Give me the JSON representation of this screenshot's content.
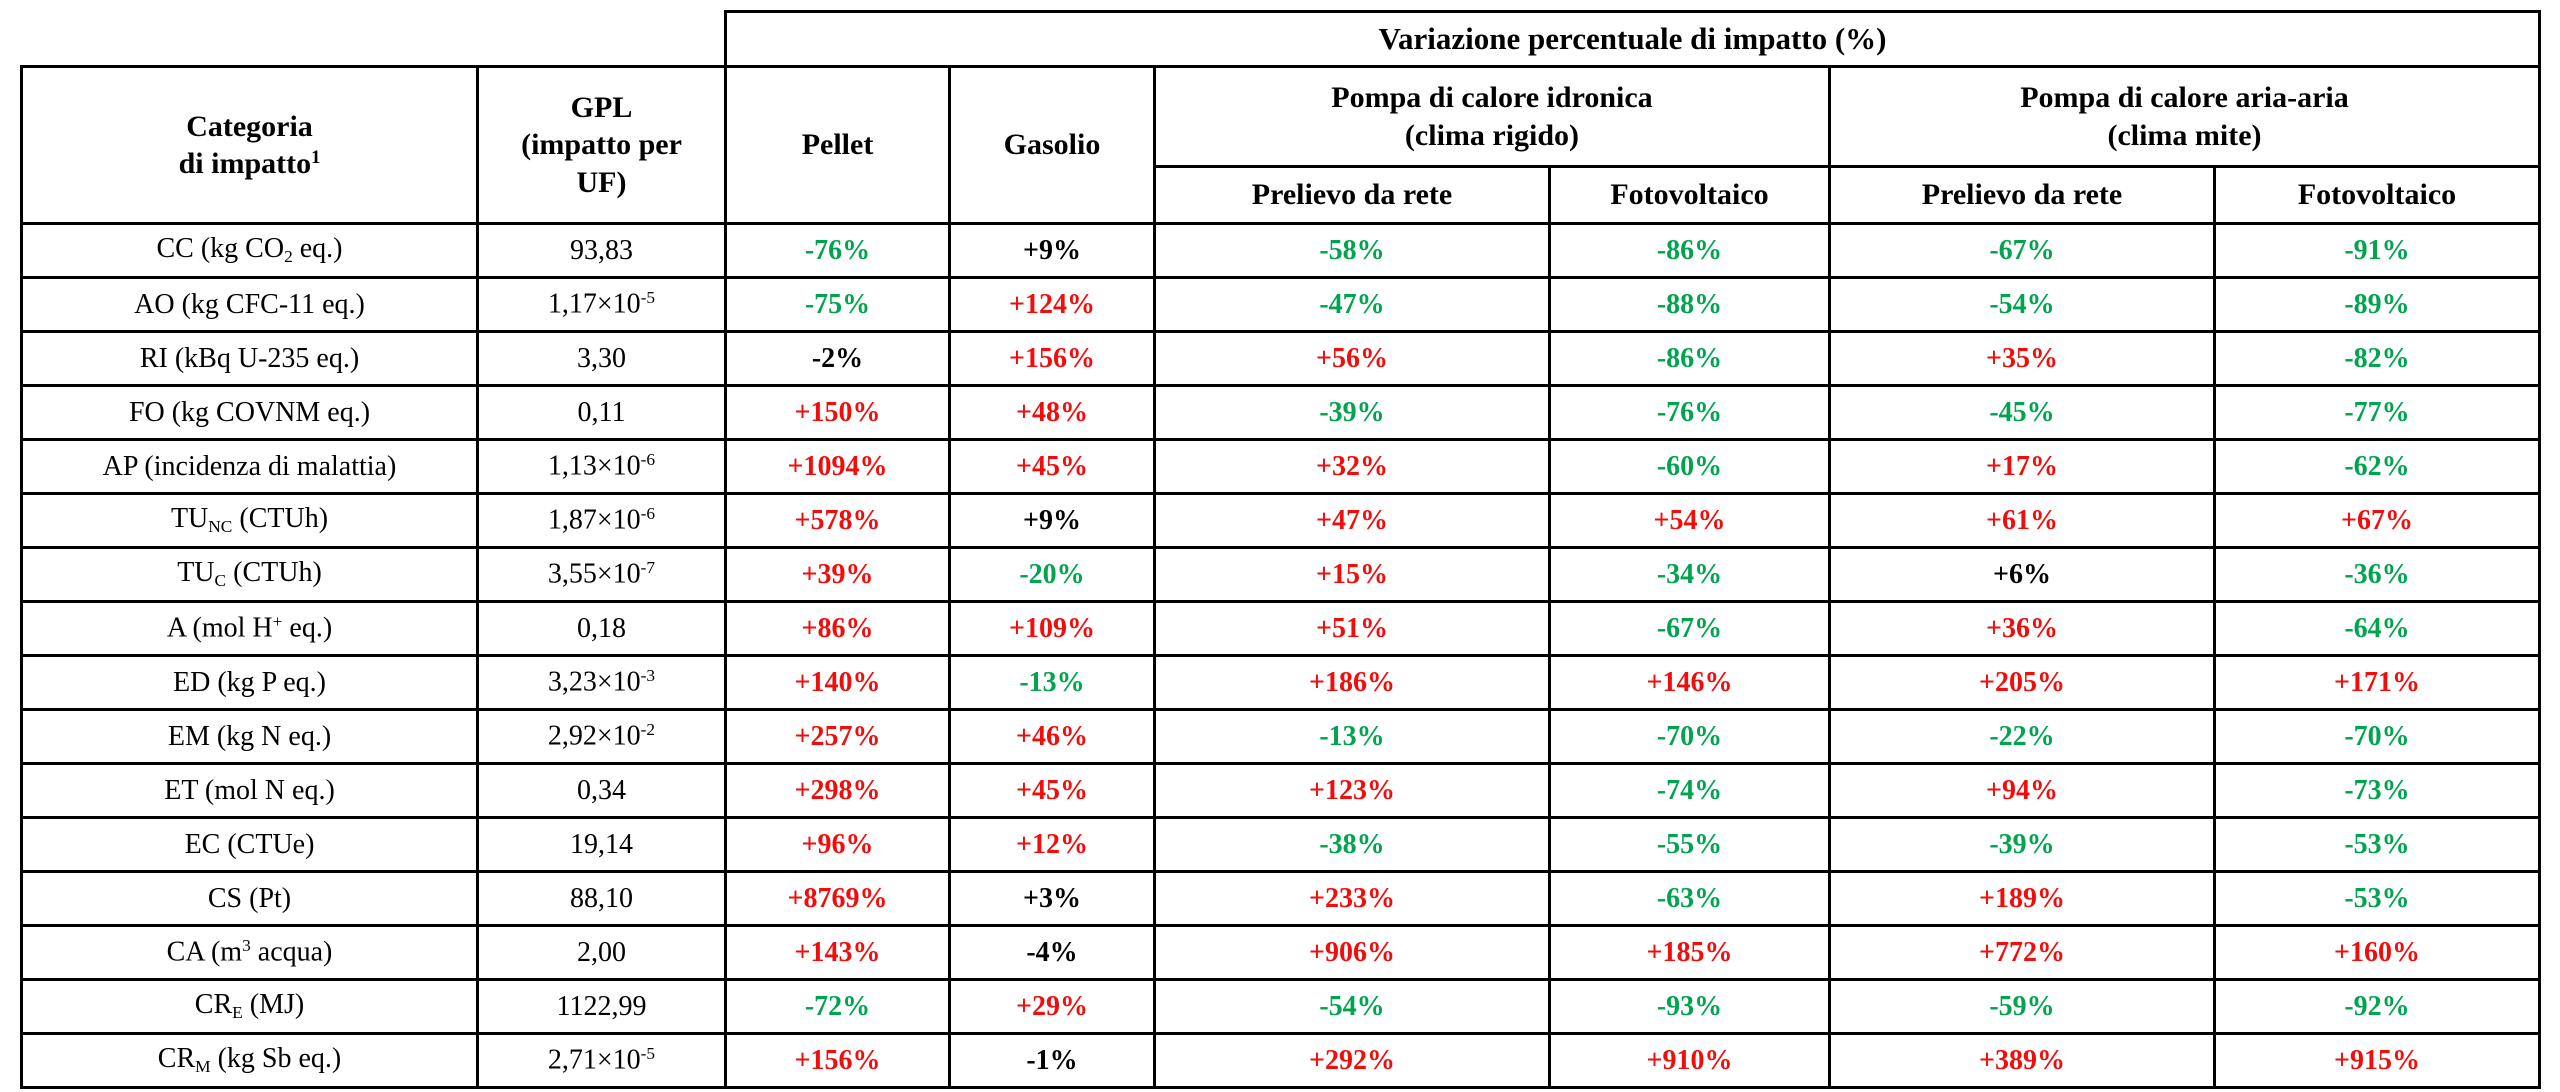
{
  "colors": {
    "r": "#f20d0d",
    "g": "#00a44f",
    "k": "#000000"
  },
  "header": {
    "variazione": "Variazione percentuale di impatto (%)",
    "categoria": [
      [
        "t",
        "Categoria\ndi impatto"
      ],
      [
        "sup",
        "1"
      ]
    ],
    "gpl": "GPL\n(impatto per\nUF)",
    "pellet": "Pellet",
    "gasolio": "Gasolio",
    "idronica": "Pompa di calore idronica\n(clima rigido)",
    "aria_aria": "Pompa di calore aria-aria\n(clima mite)",
    "prelievo": "Prelievo da rete",
    "fotovoltaico": "Fotovoltaico"
  },
  "rows": [
    {
      "category": [
        [
          "t",
          "CC (kg CO"
        ],
        [
          "sub",
          "2"
        ],
        [
          "t",
          " eq.)"
        ]
      ],
      "gpl": "93,83",
      "values": [
        {
          "t": "-76%",
          "c": "g"
        },
        {
          "t": "+9%",
          "c": "k"
        },
        {
          "t": "-58%",
          "c": "g"
        },
        {
          "t": "-86%",
          "c": "g"
        },
        {
          "t": "-67%",
          "c": "g"
        },
        {
          "t": "-91%",
          "c": "g"
        }
      ]
    },
    {
      "category": "AO (kg CFC-11 eq.)",
      "gpl": [
        [
          "t",
          "1,17×10"
        ],
        [
          "sup",
          "-5"
        ]
      ],
      "values": [
        {
          "t": "-75%",
          "c": "g"
        },
        {
          "t": "+124%",
          "c": "r"
        },
        {
          "t": "-47%",
          "c": "g"
        },
        {
          "t": "-88%",
          "c": "g"
        },
        {
          "t": "-54%",
          "c": "g"
        },
        {
          "t": "-89%",
          "c": "g"
        }
      ]
    },
    {
      "category": "RI (kBq U-235 eq.)",
      "gpl": "3,30",
      "values": [
        {
          "t": "-2%",
          "c": "k"
        },
        {
          "t": "+156%",
          "c": "r"
        },
        {
          "t": "+56%",
          "c": "r"
        },
        {
          "t": "-86%",
          "c": "g"
        },
        {
          "t": "+35%",
          "c": "r"
        },
        {
          "t": "-82%",
          "c": "g"
        }
      ]
    },
    {
      "category": "FO (kg COVNM eq.)",
      "gpl": "0,11",
      "values": [
        {
          "t": "+150%",
          "c": "r"
        },
        {
          "t": "+48%",
          "c": "r"
        },
        {
          "t": "-39%",
          "c": "g"
        },
        {
          "t": "-76%",
          "c": "g"
        },
        {
          "t": "-45%",
          "c": "g"
        },
        {
          "t": "-77%",
          "c": "g"
        }
      ]
    },
    {
      "category": "AP (incidenza di malattia)",
      "gpl": [
        [
          "t",
          "1,13×10"
        ],
        [
          "sup",
          "-6"
        ]
      ],
      "values": [
        {
          "t": "+1094%",
          "c": "r"
        },
        {
          "t": "+45%",
          "c": "r"
        },
        {
          "t": "+32%",
          "c": "r"
        },
        {
          "t": "-60%",
          "c": "g"
        },
        {
          "t": "+17%",
          "c": "r"
        },
        {
          "t": "-62%",
          "c": "g"
        }
      ]
    },
    {
      "category": [
        [
          "t",
          "TU"
        ],
        [
          "sub",
          "NC"
        ],
        [
          "t",
          " (CTUh)"
        ]
      ],
      "gpl": [
        [
          "t",
          "1,87×10"
        ],
        [
          "sup",
          "-6"
        ]
      ],
      "values": [
        {
          "t": "+578%",
          "c": "r"
        },
        {
          "t": "+9%",
          "c": "k"
        },
        {
          "t": "+47%",
          "c": "r"
        },
        {
          "t": "+54%",
          "c": "r"
        },
        {
          "t": "+61%",
          "c": "r"
        },
        {
          "t": "+67%",
          "c": "r"
        }
      ]
    },
    {
      "category": [
        [
          "t",
          "TU"
        ],
        [
          "sub",
          "C"
        ],
        [
          "t",
          " (CTUh)"
        ]
      ],
      "gpl": [
        [
          "t",
          "3,55×10"
        ],
        [
          "sup",
          "-7"
        ]
      ],
      "values": [
        {
          "t": "+39%",
          "c": "r"
        },
        {
          "t": "-20%",
          "c": "g"
        },
        {
          "t": "+15%",
          "c": "r"
        },
        {
          "t": "-34%",
          "c": "g"
        },
        {
          "t": "+6%",
          "c": "k"
        },
        {
          "t": "-36%",
          "c": "g"
        }
      ]
    },
    {
      "category": [
        [
          "t",
          "A (mol H"
        ],
        [
          "sup",
          "+"
        ],
        [
          "t",
          " eq.)"
        ]
      ],
      "gpl": "0,18",
      "values": [
        {
          "t": "+86%",
          "c": "r"
        },
        {
          "t": "+109%",
          "c": "r"
        },
        {
          "t": "+51%",
          "c": "r"
        },
        {
          "t": "-67%",
          "c": "g"
        },
        {
          "t": "+36%",
          "c": "r"
        },
        {
          "t": "-64%",
          "c": "g"
        }
      ]
    },
    {
      "category": "ED (kg P eq.)",
      "gpl": [
        [
          "t",
          "3,23×10"
        ],
        [
          "sup",
          "-3"
        ]
      ],
      "values": [
        {
          "t": "+140%",
          "c": "r"
        },
        {
          "t": "-13%",
          "c": "g"
        },
        {
          "t": "+186%",
          "c": "r"
        },
        {
          "t": "+146%",
          "c": "r"
        },
        {
          "t": "+205%",
          "c": "r"
        },
        {
          "t": "+171%",
          "c": "r"
        }
      ]
    },
    {
      "category": "EM (kg N eq.)",
      "gpl": [
        [
          "t",
          "2,92×10"
        ],
        [
          "sup",
          "-2"
        ]
      ],
      "values": [
        {
          "t": "+257%",
          "c": "r"
        },
        {
          "t": "+46%",
          "c": "r"
        },
        {
          "t": "-13%",
          "c": "g"
        },
        {
          "t": "-70%",
          "c": "g"
        },
        {
          "t": "-22%",
          "c": "g"
        },
        {
          "t": "-70%",
          "c": "g"
        }
      ]
    },
    {
      "category": "ET (mol N eq.)",
      "gpl": "0,34",
      "values": [
        {
          "t": "+298%",
          "c": "r"
        },
        {
          "t": "+45%",
          "c": "r"
        },
        {
          "t": "+123%",
          "c": "r"
        },
        {
          "t": "-74%",
          "c": "g"
        },
        {
          "t": "+94%",
          "c": "r"
        },
        {
          "t": "-73%",
          "c": "g"
        }
      ]
    },
    {
      "category": "EC (CTUe)",
      "gpl": "19,14",
      "values": [
        {
          "t": "+96%",
          "c": "r"
        },
        {
          "t": "+12%",
          "c": "r"
        },
        {
          "t": "-38%",
          "c": "g"
        },
        {
          "t": "-55%",
          "c": "g"
        },
        {
          "t": "-39%",
          "c": "g"
        },
        {
          "t": "-53%",
          "c": "g"
        }
      ]
    },
    {
      "category": "CS (Pt)",
      "gpl": "88,10",
      "values": [
        {
          "t": "+8769%",
          "c": "r"
        },
        {
          "t": "+3%",
          "c": "k"
        },
        {
          "t": "+233%",
          "c": "r"
        },
        {
          "t": "-63%",
          "c": "g"
        },
        {
          "t": "+189%",
          "c": "r"
        },
        {
          "t": "-53%",
          "c": "g"
        }
      ]
    },
    {
      "category": [
        [
          "t",
          "CA (m"
        ],
        [
          "sup",
          "3"
        ],
        [
          "t",
          " acqua)"
        ]
      ],
      "gpl": "2,00",
      "values": [
        {
          "t": "+143%",
          "c": "r"
        },
        {
          "t": "-4%",
          "c": "k"
        },
        {
          "t": "+906%",
          "c": "r"
        },
        {
          "t": "+185%",
          "c": "r"
        },
        {
          "t": "+772%",
          "c": "r"
        },
        {
          "t": "+160%",
          "c": "r"
        }
      ]
    },
    {
      "category": [
        [
          "t",
          "CR"
        ],
        [
          "sub",
          "E"
        ],
        [
          "t",
          " (MJ)"
        ]
      ],
      "gpl": "1122,99",
      "values": [
        {
          "t": "-72%",
          "c": "g"
        },
        {
          "t": "+29%",
          "c": "r"
        },
        {
          "t": "-54%",
          "c": "g"
        },
        {
          "t": "-93%",
          "c": "g"
        },
        {
          "t": "-59%",
          "c": "g"
        },
        {
          "t": "-92%",
          "c": "g"
        }
      ]
    },
    {
      "category": [
        [
          "t",
          "CR"
        ],
        [
          "sub",
          "M"
        ],
        [
          "t",
          " (kg Sb eq.)"
        ]
      ],
      "gpl": [
        [
          "t",
          "2,71×10"
        ],
        [
          "sup",
          "-5"
        ]
      ],
      "values": [
        {
          "t": "+156%",
          "c": "r"
        },
        {
          "t": "-1%",
          "c": "k"
        },
        {
          "t": "+292%",
          "c": "r"
        },
        {
          "t": "+910%",
          "c": "r"
        },
        {
          "t": "+389%",
          "c": "r"
        },
        {
          "t": "+915%",
          "c": "r"
        }
      ]
    }
  ]
}
